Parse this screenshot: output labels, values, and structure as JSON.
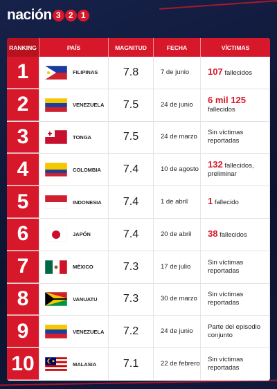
{
  "header": {
    "brand": "nación",
    "digits": [
      "3",
      "2",
      "1"
    ]
  },
  "table": {
    "columns": [
      "RANKING",
      "PAÍS",
      "MAGNITUD",
      "FECHA",
      "VÍCTIMAS"
    ],
    "rows": [
      {
        "rank": 1,
        "country": "FILIPINAS",
        "magnitude": 7.8,
        "date": "7 de junio",
        "victims_highlight": "107",
        "victims_text": "fallecidos"
      },
      {
        "rank": 2,
        "country": "VENEZUELA",
        "magnitude": 7.5,
        "date": "24 de junio",
        "victims_highlight": "6 mil 125",
        "victims_text": "fallecidos"
      },
      {
        "rank": 3,
        "country": "TONGA",
        "magnitude": 7.5,
        "date": "24 de marzo",
        "victims_text": "Sin víctimas reportadas"
      },
      {
        "rank": 4,
        "country": "COLOMBIA",
        "magnitude": 7.4,
        "date": "10 de agosto",
        "victims_highlight": "132",
        "victims_text": "fallecidos, preliminar"
      },
      {
        "rank": 5,
        "country": "INDONESIA",
        "magnitude": 7.4,
        "date": "1 de abril",
        "victims_highlight": "1",
        "victims_text": "fallecido"
      },
      {
        "rank": 6,
        "country": "JAPÓN",
        "magnitude": 7.4,
        "date": "20 de abril",
        "victims_highlight": "38",
        "victims_text": "fallecidos"
      },
      {
        "rank": 7,
        "country": "MÉXICO",
        "magnitude": 7.3,
        "date": "17 de julio",
        "victims_text": "Sin víctimas reportadas"
      },
      {
        "rank": 8,
        "country": "VANUATU",
        "magnitude": 7.3,
        "date": "30 de marzo",
        "victims_text": "Sin víctimas reportadas"
      },
      {
        "rank": 9,
        "country": "VENEZUELA",
        "magnitude": 7.2,
        "date": "24 de junio",
        "victims_text": "Parte del episodio conjunto"
      },
      {
        "rank": 10,
        "country": "MALASIA",
        "magnitude": 7.1,
        "date": "22 de febrero",
        "victims_text": "Sin víctimas reportadas"
      }
    ]
  }
}
